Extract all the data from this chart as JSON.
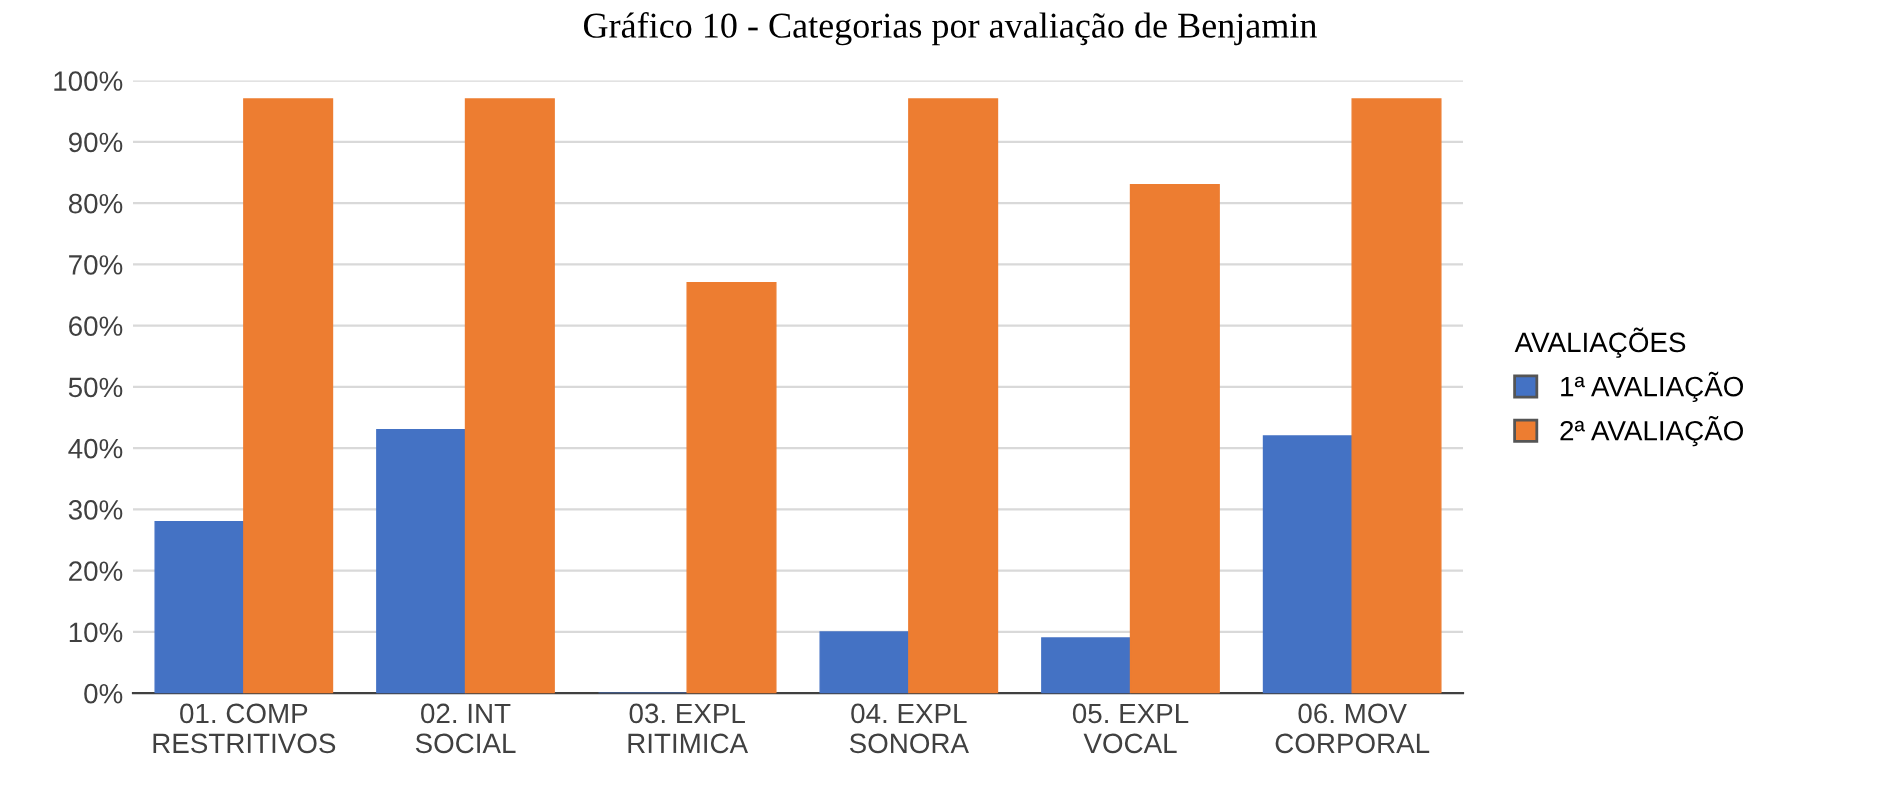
{
  "chart_data": {
    "type": "bar",
    "title": "Gráfico 10 - Categorias por avaliação de Benjamin",
    "categories": [
      "01. COMP\nRESTRITIVOS",
      "02. INT\nSOCIAL",
      "03. EXPL\nRITIMICA",
      "04. EXPL\nSONORA",
      "05. EXPL\nVOCAL",
      "06. MOV\nCORPORAL"
    ],
    "series": [
      {
        "name": "1ª AVALIAÇÃO",
        "color": "#4472c4",
        "values": [
          28,
          43,
          0,
          10,
          9,
          42
        ]
      },
      {
        "name": "2ª AVALIAÇÃO",
        "color": "#ed7d31",
        "values": [
          97,
          97,
          67,
          97,
          83,
          97
        ]
      }
    ],
    "legend_title": "AVALIAÇÕES",
    "legend": "right",
    "ylim": [
      0,
      100
    ],
    "yticks": [
      {
        "value": 0,
        "label": "0%"
      },
      {
        "value": 10,
        "label": "10%"
      },
      {
        "value": 20,
        "label": "20%"
      },
      {
        "value": 30,
        "label": "30%"
      },
      {
        "value": 40,
        "label": "40%"
      },
      {
        "value": 50,
        "label": "50%"
      },
      {
        "value": 60,
        "label": "60%"
      },
      {
        "value": 70,
        "label": "70%"
      },
      {
        "value": 80,
        "label": "80%"
      },
      {
        "value": 90,
        "label": "90%"
      },
      {
        "value": 100,
        "label": "100%"
      }
    ],
    "grid": "y"
  }
}
